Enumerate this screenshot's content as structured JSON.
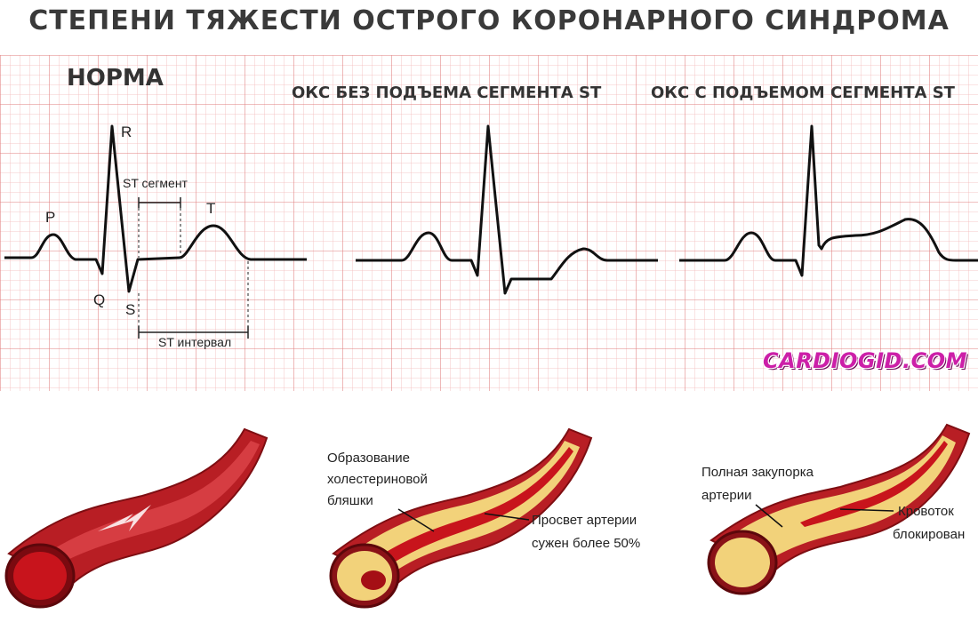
{
  "title": "СТЕПЕНИ ТЯЖЕСТИ ОСТРОГО КОРОНАРНОГО СИНДРОМА",
  "panels": {
    "normal": {
      "label": "НОРМА",
      "waves": {
        "p": "P",
        "q": "Q",
        "r": "R",
        "s": "S",
        "t": "T"
      },
      "st_segment": "ST сегмент",
      "st_interval": "ST интервал"
    },
    "nstemi": {
      "label": "ОКС БЕЗ ПОДЪЕМА СЕГМЕНТА ST"
    },
    "stemi": {
      "label": "ОКС С ПОДЪЕМОМ СЕГМЕНТА ST"
    }
  },
  "watermark": "CARDIOGID.COM",
  "vessels": {
    "plaque": {
      "label_lines": [
        "Образование",
        "холестериновой",
        "бляшки"
      ],
      "note_lines": [
        "Просвет артерии",
        "сужен более 50%"
      ]
    },
    "occlusion": {
      "label_lines": [
        "Полная закупорка",
        "артерии"
      ],
      "note_lines": [
        "Кровоток",
        "блокирован"
      ]
    }
  },
  "colors": {
    "grid_minor": "#f3b9b9",
    "grid_major": "#e07f7f",
    "trace": "#111111",
    "blood": "#c8141c",
    "vessel_wall": "#b81e24",
    "plaque": "#f2d27a",
    "watermark": "#cc1fa8"
  }
}
